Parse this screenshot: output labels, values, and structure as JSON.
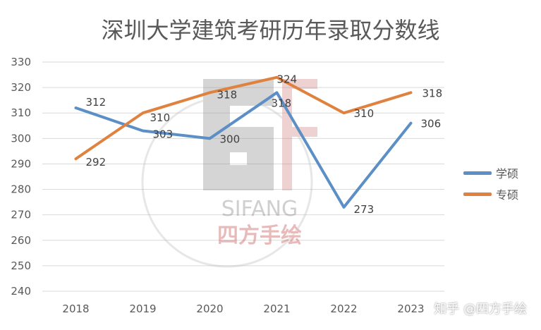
{
  "chart_data": {
    "type": "line",
    "title": "深圳大学建筑考研历年录取分数线",
    "categories": [
      "2018",
      "2019",
      "2020",
      "2021",
      "2022",
      "2023"
    ],
    "ylim": [
      240,
      330
    ],
    "yticks": [
      240,
      250,
      260,
      270,
      280,
      290,
      300,
      310,
      320,
      330
    ],
    "grid": true,
    "legend_position": "right",
    "series": [
      {
        "name": "学硕",
        "color": "#5b8fc6",
        "values": [
          312,
          303,
          300,
          318,
          273,
          306
        ]
      },
      {
        "name": "专硕",
        "color": "#e0823f",
        "values": [
          292,
          310,
          318,
          324,
          310,
          318
        ]
      }
    ]
  },
  "watermark": {
    "logo_text": "SIFANG",
    "logo_subtext": "四方手绘",
    "footer": "知乎 @四方手绘"
  }
}
